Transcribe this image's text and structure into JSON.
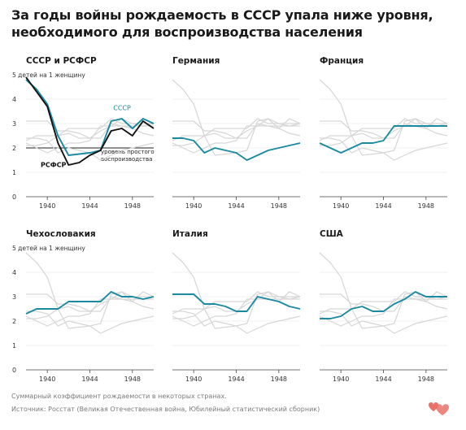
{
  "title": "За годы войны рождаемость в СССР упала ниже уровня, необходимого для воспроизводства населения",
  "footnote": "Суммарный коэффициент рождаемости в некоторых странах.",
  "source": "Источник: Росстат (Великая Отечественная война, Юбилейный статистический сборник)",
  "colors": {
    "highlight": "#1b8aa0",
    "rsfsr": "#111111",
    "background_lines": "#d6d6d6",
    "axis": "#444444",
    "gridline": "#e4e4e4",
    "logo": "#e8726a"
  },
  "logo_icon": "hearts-logo-icon",
  "chart_data": [
    {
      "type": "line",
      "title": "СССР и РСФСР",
      "ylim": [
        0,
        5
      ],
      "yticks": [
        0,
        1,
        2,
        3,
        4,
        5
      ],
      "y_top_label": "5 детей на 1 женщину",
      "xlim": [
        1938,
        1950
      ],
      "xticks": [
        1940,
        1944,
        1948
      ],
      "reference_line": {
        "y": 2,
        "label_line1": "уровень простого",
        "label_line2": "воспроизводства"
      },
      "series": [
        {
          "name": "СССР",
          "role": "highlight",
          "x": [
            1938,
            1939,
            1940,
            1941,
            1942,
            1943,
            1944,
            1945,
            1946,
            1947,
            1948,
            1949,
            1950
          ],
          "values": [
            4.8,
            4.4,
            3.8,
            2.5,
            1.7,
            1.75,
            1.8,
            1.9,
            3.1,
            3.2,
            2.8,
            3.2,
            3.0
          ]
        },
        {
          "name": "РСФСР",
          "role": "dark",
          "x": [
            1938,
            1939,
            1940,
            1941,
            1942,
            1943,
            1944,
            1945,
            1946,
            1947,
            1948,
            1949,
            1950
          ],
          "values": [
            4.9,
            4.3,
            3.7,
            2.2,
            1.3,
            1.4,
            1.7,
            1.9,
            2.7,
            2.8,
            2.5,
            3.1,
            2.8
          ]
        }
      ]
    },
    {
      "type": "line",
      "title": "Германия",
      "ylim": [
        0,
        5
      ],
      "xlim": [
        1938,
        1950
      ],
      "xticks": [
        1940,
        1944,
        1948
      ],
      "series": [
        {
          "name": "Германия",
          "role": "highlight",
          "x": [
            1938,
            1939,
            1940,
            1941,
            1942,
            1943,
            1944,
            1945,
            1946,
            1947,
            1948,
            1949,
            1950
          ],
          "values": [
            2.4,
            2.4,
            2.3,
            1.8,
            2.0,
            1.9,
            1.8,
            1.5,
            1.7,
            1.9,
            2.0,
            2.1,
            2.2
          ]
        }
      ]
    },
    {
      "type": "line",
      "title": "Франция",
      "ylim": [
        0,
        5
      ],
      "xlim": [
        1938,
        1950
      ],
      "xticks": [
        1940,
        1944,
        1948
      ],
      "series": [
        {
          "name": "Франция",
          "role": "highlight",
          "x": [
            1938,
            1939,
            1940,
            1941,
            1942,
            1943,
            1944,
            1945,
            1946,
            1947,
            1948,
            1949,
            1950
          ],
          "values": [
            2.2,
            2.0,
            1.8,
            2.0,
            2.2,
            2.2,
            2.3,
            2.9,
            2.9,
            2.9,
            2.9,
            2.9,
            2.9
          ]
        }
      ]
    },
    {
      "type": "line",
      "title": "Чехословакия",
      "ylim": [
        0,
        5
      ],
      "yticks": [
        0,
        1,
        2,
        3,
        4,
        5
      ],
      "y_top_label": "5 детей на 1 женщину",
      "xlim": [
        1938,
        1950
      ],
      "xticks": [
        1940,
        1944,
        1948
      ],
      "series": [
        {
          "name": "Чехословакия",
          "role": "highlight",
          "x": [
            1938,
            1939,
            1940,
            1941,
            1942,
            1943,
            1944,
            1945,
            1946,
            1947,
            1948,
            1949,
            1950
          ],
          "values": [
            2.3,
            2.5,
            2.5,
            2.5,
            2.8,
            2.8,
            2.8,
            2.8,
            3.2,
            3.0,
            3.0,
            2.9,
            3.0
          ]
        }
      ]
    },
    {
      "type": "line",
      "title": "Италия",
      "ylim": [
        0,
        5
      ],
      "xlim": [
        1938,
        1950
      ],
      "xticks": [
        1940,
        1944,
        1948
      ],
      "series": [
        {
          "name": "Италия",
          "role": "highlight",
          "x": [
            1938,
            1939,
            1940,
            1941,
            1942,
            1943,
            1944,
            1945,
            1946,
            1947,
            1948,
            1949,
            1950
          ],
          "values": [
            3.1,
            3.1,
            3.1,
            2.7,
            2.7,
            2.6,
            2.4,
            2.4,
            3.0,
            2.9,
            2.8,
            2.6,
            2.5
          ]
        }
      ]
    },
    {
      "type": "line",
      "title": "США",
      "ylim": [
        0,
        5
      ],
      "xlim": [
        1938,
        1950
      ],
      "xticks": [
        1940,
        1944,
        1948
      ],
      "series": [
        {
          "name": "США",
          "role": "highlight",
          "x": [
            1938,
            1939,
            1940,
            1941,
            1942,
            1943,
            1944,
            1945,
            1946,
            1947,
            1948,
            1949,
            1950
          ],
          "values": [
            2.1,
            2.1,
            2.2,
            2.5,
            2.6,
            2.4,
            2.4,
            2.7,
            2.9,
            3.2,
            3.0,
            3.0,
            3.0
          ]
        }
      ]
    }
  ]
}
